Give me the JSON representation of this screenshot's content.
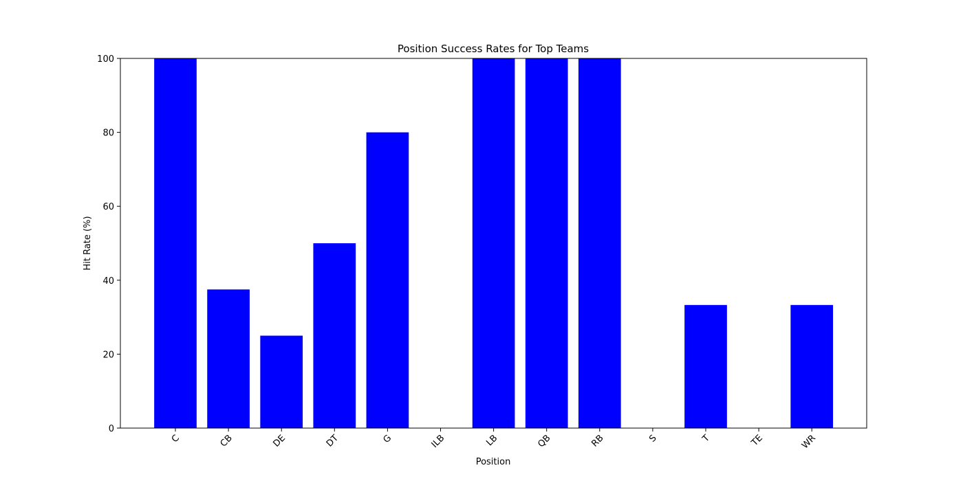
{
  "chart_data": {
    "type": "bar",
    "title": "Position Success Rates for Top Teams",
    "xlabel": "Position",
    "ylabel": "Hit Rate (%)",
    "categories": [
      "C",
      "CB",
      "DE",
      "DT",
      "G",
      "ILB",
      "LB",
      "QB",
      "RB",
      "S",
      "T",
      "TE",
      "WR"
    ],
    "values": [
      100,
      37.5,
      25,
      50,
      80,
      0,
      100,
      100,
      100,
      0,
      33.3,
      0,
      33.3
    ],
    "ylim": [
      0,
      100
    ],
    "yticks": [
      0,
      20,
      40,
      60,
      80,
      100
    ],
    "bar_color": "#0000ff",
    "grid": false,
    "xtick_rotation": 45
  }
}
